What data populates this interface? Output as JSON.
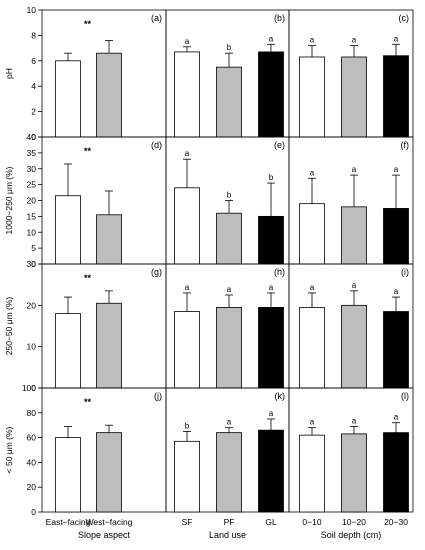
{
  "chart_data": {
    "type": "bar",
    "column_titles": [
      "Slope aspect",
      "Land use",
      "Soil depth (cm)"
    ],
    "column_categories": [
      [
        "East−facing",
        "West−facing"
      ],
      [
        "SF",
        "PF",
        "GL"
      ],
      [
        "0−10",
        "10−20",
        "20−30"
      ]
    ],
    "bar_colors": {
      "East−facing": "#ffffff",
      "West−facing": "#bdbdbd",
      "SF": "#ffffff",
      "PF": "#bdbdbd",
      "GL": "#000000",
      "0−10": "#ffffff",
      "10−20": "#bdbdbd",
      "20−30": "#000000"
    },
    "rows": [
      {
        "ylabel": "pH",
        "ylim": [
          0,
          10
        ],
        "yticks": [
          0,
          2,
          4,
          6,
          8,
          10
        ],
        "panels": [
          {
            "label": "(a)",
            "values": [
              6.0,
              6.6
            ],
            "errors": [
              0.6,
              1.0
            ],
            "letters": [
              "",
              ""
            ],
            "annotation": "**"
          },
          {
            "label": "(b)",
            "values": [
              6.7,
              5.5
            ],
            "errors": [
              0.4,
              1.1
            ],
            "letters": [
              "a",
              "b"
            ],
            "annotation": "",
            "values_extra": 6.7,
            "error_extra": 0.6,
            "letter_extra": "a"
          },
          {
            "label": "(c)",
            "values": [
              6.3,
              6.3,
              6.4
            ],
            "errors": [
              0.9,
              0.9,
              0.9
            ],
            "letters": [
              "a",
              "a",
              "a"
            ],
            "annotation": ""
          }
        ]
      },
      {
        "ylabel": "1000−250 μm (%)",
        "ylim": [
          0,
          40
        ],
        "yticks": [
          0,
          5,
          10,
          15,
          20,
          25,
          30,
          35,
          40
        ],
        "panels": [
          {
            "label": "(d)",
            "values": [
              21.5,
              15.5
            ],
            "errors": [
              10,
              7.5
            ],
            "letters": [
              "",
              ""
            ],
            "annotation": "**"
          },
          {
            "label": "(e)",
            "values": [
              24,
              16,
              15
            ],
            "errors": [
              9,
              4,
              10.5
            ],
            "letters": [
              "a",
              "b",
              "b"
            ],
            "annotation": ""
          },
          {
            "label": "(f)",
            "values": [
              19,
              18,
              17.5
            ],
            "errors": [
              8,
              10,
              10.5
            ],
            "letters": [
              "a",
              "a",
              "a"
            ],
            "annotation": ""
          }
        ]
      },
      {
        "ylabel": "250−50 μm (%)",
        "ylim": [
          0,
          30
        ],
        "yticks": [
          0,
          10,
          20,
          30
        ],
        "panels": [
          {
            "label": "(g)",
            "values": [
              18,
              20.5
            ],
            "errors": [
              4,
              3
            ],
            "letters": [
              "",
              ""
            ],
            "annotation": "**"
          },
          {
            "label": "(h)",
            "values": [
              18.5,
              19.5,
              19.5
            ],
            "errors": [
              4.5,
              3,
              3.5
            ],
            "letters": [
              "a",
              "a",
              "a"
            ],
            "annotation": ""
          },
          {
            "label": "(i)",
            "values": [
              19.5,
              20,
              18.5
            ],
            "errors": [
              3.5,
              3.5,
              3.5
            ],
            "letters": [
              "a",
              "a",
              "a"
            ],
            "annotation": ""
          }
        ]
      },
      {
        "ylabel": "< 50 μm (%)",
        "ylim": [
          0,
          100
        ],
        "yticks": [
          0,
          20,
          40,
          60,
          80,
          100
        ],
        "panels": [
          {
            "label": "(j)",
            "values": [
              60,
              64
            ],
            "errors": [
              9,
              6
            ],
            "letters": [
              "",
              ""
            ],
            "annotation": "**"
          },
          {
            "label": "(k)",
            "values": [
              57,
              64,
              66
            ],
            "errors": [
              8,
              4,
              9
            ],
            "letters": [
              "b",
              "a",
              "a"
            ],
            "annotation": ""
          },
          {
            "label": "(l)",
            "values": [
              62,
              63,
              64
            ],
            "errors": [
              6,
              6,
              8
            ],
            "letters": [
              "a",
              "a",
              "a"
            ],
            "annotation": ""
          }
        ]
      }
    ]
  }
}
